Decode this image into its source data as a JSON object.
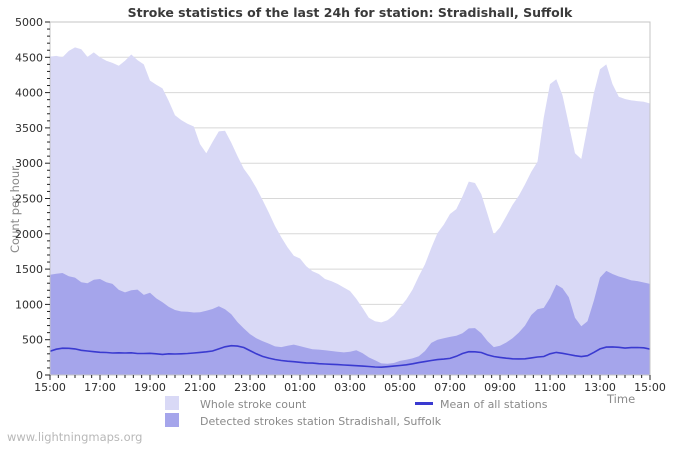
{
  "page": {
    "watermark": "www.lightningmaps.org"
  },
  "chart_data": {
    "type": "area",
    "title": "Stroke statistics of the last 24h for station: Stradishall, Suffolk",
    "ylabel": "Count per hour",
    "xlabel": "Time",
    "ylim": [
      0,
      5000
    ],
    "y_tick_step": 500,
    "y_minor_step": 100,
    "y_tick_labels": [
      "0",
      "500",
      "1000",
      "1500",
      "2000",
      "2500",
      "3000",
      "3500",
      "4000",
      "4500",
      "5000"
    ],
    "x_tick_labels": [
      "15:00",
      "17:00",
      "19:00",
      "21:00",
      "23:00",
      "01:00",
      "03:00",
      "05:00",
      "07:00",
      "09:00",
      "11:00",
      "13:00",
      "15:00"
    ],
    "x_total_minutes": 1440,
    "x_major_minutes": 120,
    "x_minor_minutes": 20,
    "sample_step_minutes": 15,
    "grid": "horizontal-only",
    "legend_position": "bottom",
    "colors": {
      "whole_area": "#d9d9f6",
      "detected_area": "#a5a5eb",
      "mean_line": "#3a3ad0",
      "gridline": "#d8d8d8",
      "border": "#c4c4c4",
      "tick": "#222222"
    },
    "series": [
      {
        "name": "Whole stroke count",
        "type": "area",
        "color": "#d9d9f6",
        "values": [
          4510,
          4520,
          4500,
          4590,
          4640,
          4615,
          4505,
          4570,
          4500,
          4450,
          4420,
          4380,
          4450,
          4540,
          4460,
          4400,
          4170,
          4110,
          4060,
          3880,
          3680,
          3610,
          3560,
          3520,
          3270,
          3140,
          3300,
          3450,
          3460,
          3290,
          3100,
          2920,
          2800,
          2650,
          2480,
          2300,
          2110,
          1950,
          1810,
          1690,
          1650,
          1540,
          1470,
          1430,
          1360,
          1330,
          1290,
          1240,
          1190,
          1080,
          950,
          810,
          760,
          745,
          775,
          845,
          960,
          1070,
          1210,
          1400,
          1570,
          1800,
          2010,
          2130,
          2280,
          2350,
          2530,
          2740,
          2720,
          2560,
          2280,
          1990,
          2090,
          2250,
          2410,
          2540,
          2700,
          2880,
          3020,
          3650,
          4120,
          4190,
          3960,
          3550,
          3140,
          3060,
          3520,
          3990,
          4330,
          4400,
          4120,
          3940,
          3910,
          3890,
          3880,
          3870,
          3845
        ]
      },
      {
        "name": "Detected strokes station Stradishall, Suffolk",
        "type": "area",
        "color": "#a5a5eb",
        "values": [
          1420,
          1435,
          1445,
          1400,
          1380,
          1315,
          1300,
          1350,
          1360,
          1315,
          1290,
          1205,
          1170,
          1200,
          1210,
          1135,
          1165,
          1085,
          1030,
          965,
          920,
          900,
          895,
          885,
          890,
          910,
          935,
          975,
          930,
          860,
          750,
          660,
          580,
          520,
          480,
          445,
          405,
          395,
          415,
          430,
          410,
          385,
          365,
          360,
          350,
          340,
          330,
          320,
          330,
          350,
          310,
          250,
          210,
          165,
          160,
          170,
          200,
          215,
          235,
          265,
          340,
          455,
          500,
          520,
          540,
          555,
          590,
          660,
          665,
          590,
          480,
          395,
          415,
          460,
          520,
          600,
          700,
          850,
          930,
          950,
          1090,
          1280,
          1230,
          1100,
          810,
          690,
          760,
          1050,
          1380,
          1475,
          1430,
          1395,
          1370,
          1340,
          1330,
          1310,
          1290
        ]
      },
      {
        "name": "Mean of all stations",
        "type": "line",
        "color": "#3a3ad0",
        "values": [
          335,
          365,
          380,
          378,
          370,
          350,
          340,
          330,
          321,
          318,
          312,
          315,
          311,
          315,
          305,
          305,
          307,
          300,
          292,
          300,
          297,
          300,
          305,
          312,
          320,
          328,
          340,
          370,
          400,
          415,
          410,
          390,
          345,
          300,
          264,
          240,
          220,
          205,
          195,
          188,
          180,
          172,
          168,
          160,
          156,
          152,
          148,
          142,
          138,
          132,
          126,
          120,
          114,
          110,
          118,
          126,
          134,
          145,
          158,
          175,
          190,
          205,
          218,
          225,
          235,
          265,
          305,
          330,
          328,
          318,
          285,
          262,
          250,
          238,
          230,
          228,
          230,
          242,
          255,
          262,
          300,
          320,
          307,
          290,
          274,
          260,
          274,
          320,
          370,
          395,
          398,
          392,
          381,
          388,
          390,
          385,
          367
        ]
      }
    ]
  },
  "legend": {
    "items": [
      {
        "label": "Whole stroke count",
        "swatch": "area"
      },
      {
        "label": "Detected strokes station Stradishall, Suffolk",
        "swatch": "area"
      },
      {
        "label": "Mean of all stations",
        "swatch": "line"
      }
    ]
  }
}
